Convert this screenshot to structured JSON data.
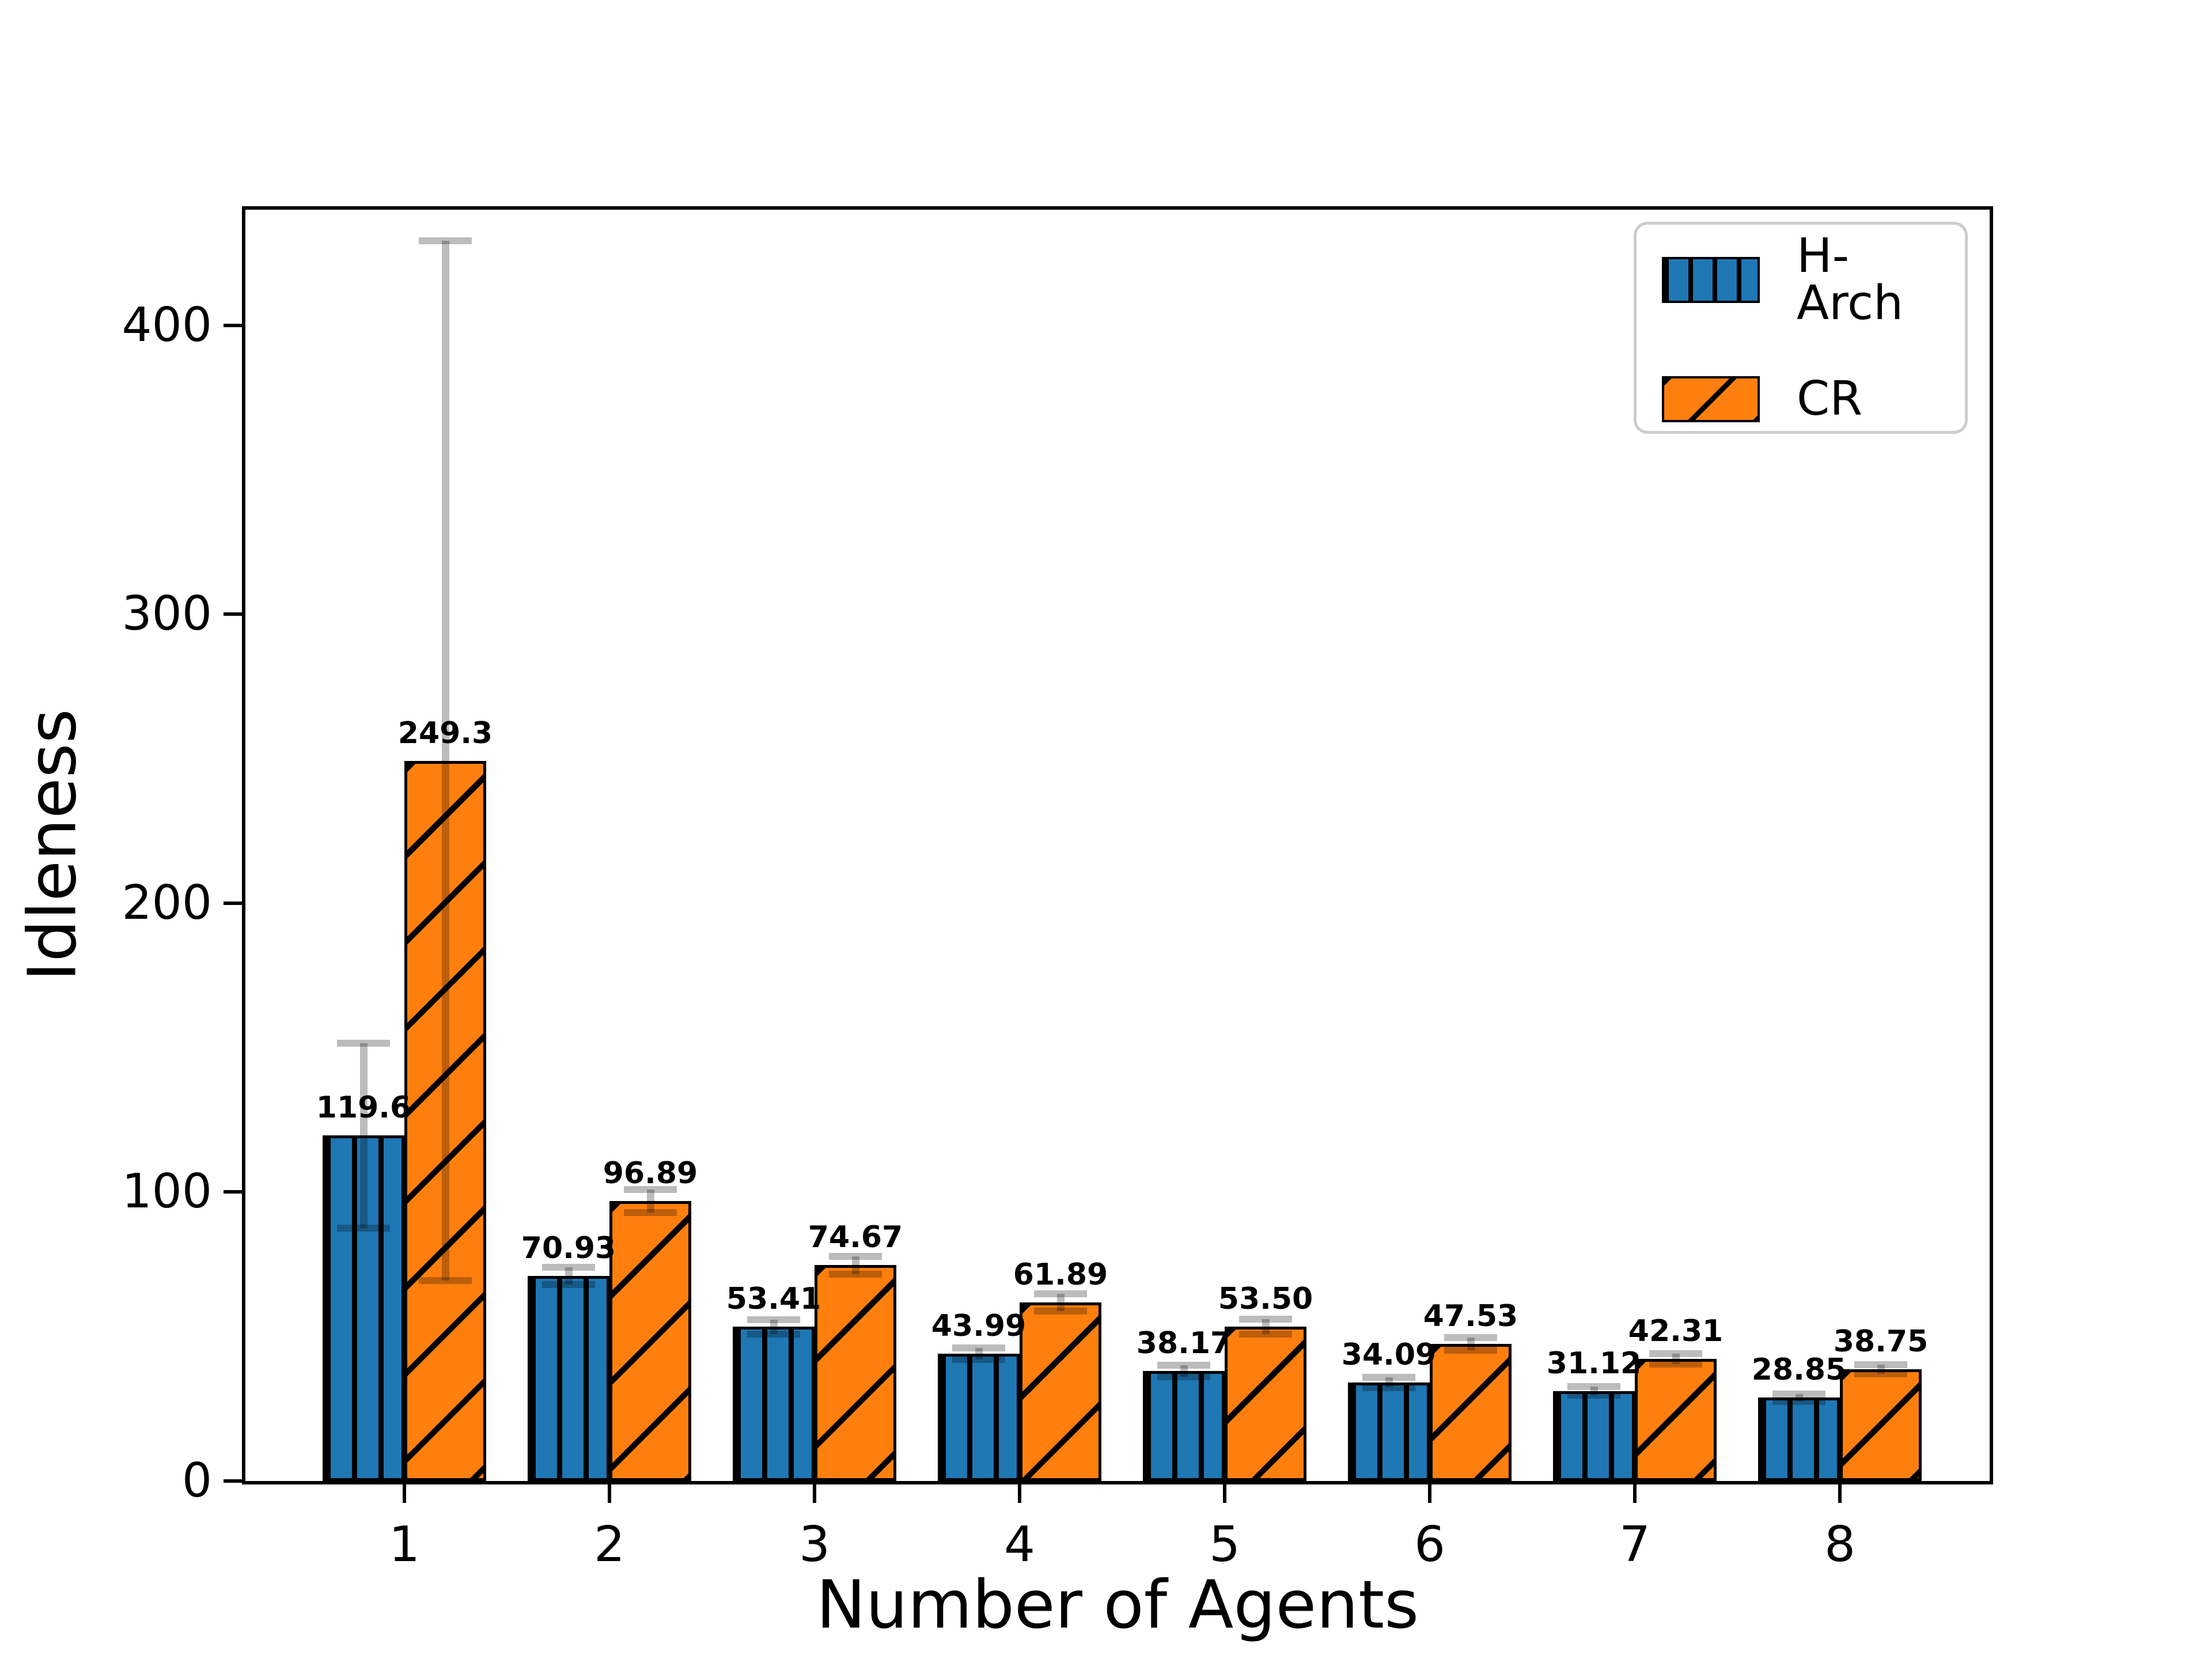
{
  "figure": {
    "background": "#ffffff"
  },
  "axes": {
    "xlabel": "Number of Agents",
    "ylabel": "Idleness"
  },
  "legend": {
    "items": [
      {
        "label": "H-Arch",
        "color": "#1f77b4",
        "hatch": "vertical"
      },
      {
        "label": "CR",
        "color": "#ff7f0e",
        "hatch": "diagonal"
      }
    ]
  },
  "chart_data": {
    "type": "bar",
    "title": "",
    "xlabel": "Number of Agents",
    "ylabel": "Idleness",
    "categories": [
      "1",
      "2",
      "3",
      "4",
      "5",
      "6",
      "7",
      "8"
    ],
    "series": [
      {
        "name": "H-Arch",
        "color": "#1f77b4",
        "hatch": "|",
        "values": [
          119.6,
          70.93,
          53.41,
          43.99,
          38.17,
          34.09,
          31.12,
          28.85
        ],
        "labels": [
          "119.6",
          "70.93",
          "53.41",
          "43.99",
          "38.17",
          "34.09",
          "31.12",
          "28.85"
        ],
        "errors": [
          32,
          3,
          2.5,
          2,
          2,
          1.7,
          1.5,
          1.3
        ]
      },
      {
        "name": "CR",
        "color": "#ff7f0e",
        "hatch": "/",
        "values": [
          249.3,
          96.89,
          74.67,
          61.89,
          53.5,
          47.53,
          42.31,
          38.75
        ],
        "labels": [
          "249.3",
          "96.89",
          "74.67",
          "61.89",
          "53.50",
          "47.53",
          "42.31",
          "38.75"
        ],
        "errors": [
          180,
          4,
          3,
          3,
          2.6,
          2.2,
          1.8,
          1.6
        ]
      }
    ],
    "ylim": [
      0,
      440
    ],
    "yticks": [
      0,
      100,
      200,
      300,
      400
    ],
    "ytick_labels": [
      "0",
      "100",
      "200",
      "300",
      "400"
    ],
    "grid": false,
    "legend_position": "upper right",
    "error_color": "#bcbcbc",
    "bar_edge_color": "#000000"
  }
}
